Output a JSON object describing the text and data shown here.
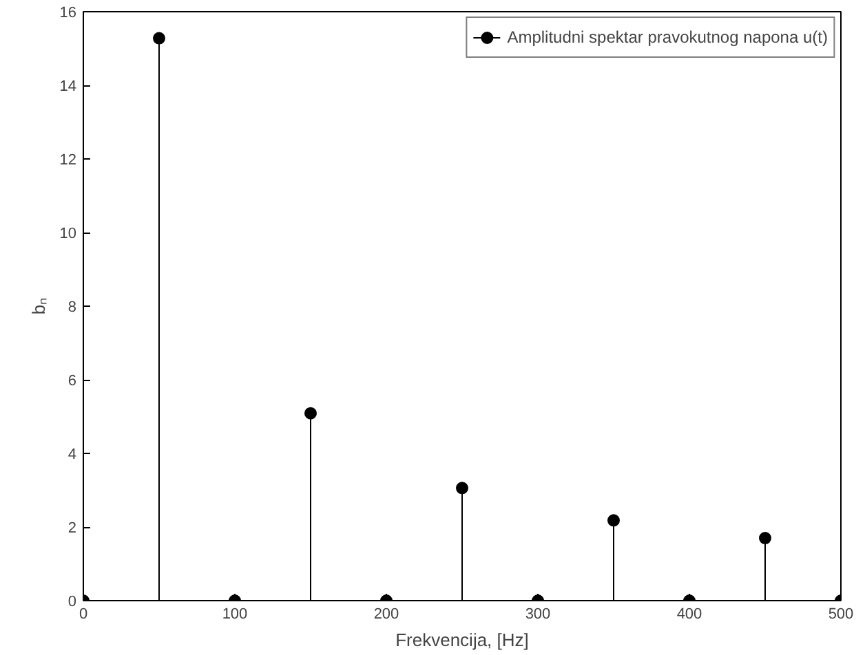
{
  "chart_data": {
    "type": "lollipop",
    "xlabel": "Frekvencija, [Hz]",
    "ylabel": "bₙ",
    "x": [
      0,
      50,
      100,
      150,
      200,
      250,
      300,
      350,
      400,
      450,
      500
    ],
    "series": [
      {
        "name": "Amplitudni spektar pravokutnog napona u(t)",
        "color": "#000000",
        "values": [
          0,
          15.28,
          0,
          5.09,
          0,
          3.06,
          0,
          2.18,
          0,
          1.7,
          0
        ]
      }
    ],
    "xlim": [
      0,
      500
    ],
    "ylim": [
      0,
      16
    ],
    "xticks": [
      0,
      100,
      200,
      300,
      400,
      500
    ],
    "yticks": [
      0,
      2,
      4,
      6,
      8,
      10,
      12,
      14,
      16
    ],
    "legend": "top right",
    "marker": "circle"
  }
}
